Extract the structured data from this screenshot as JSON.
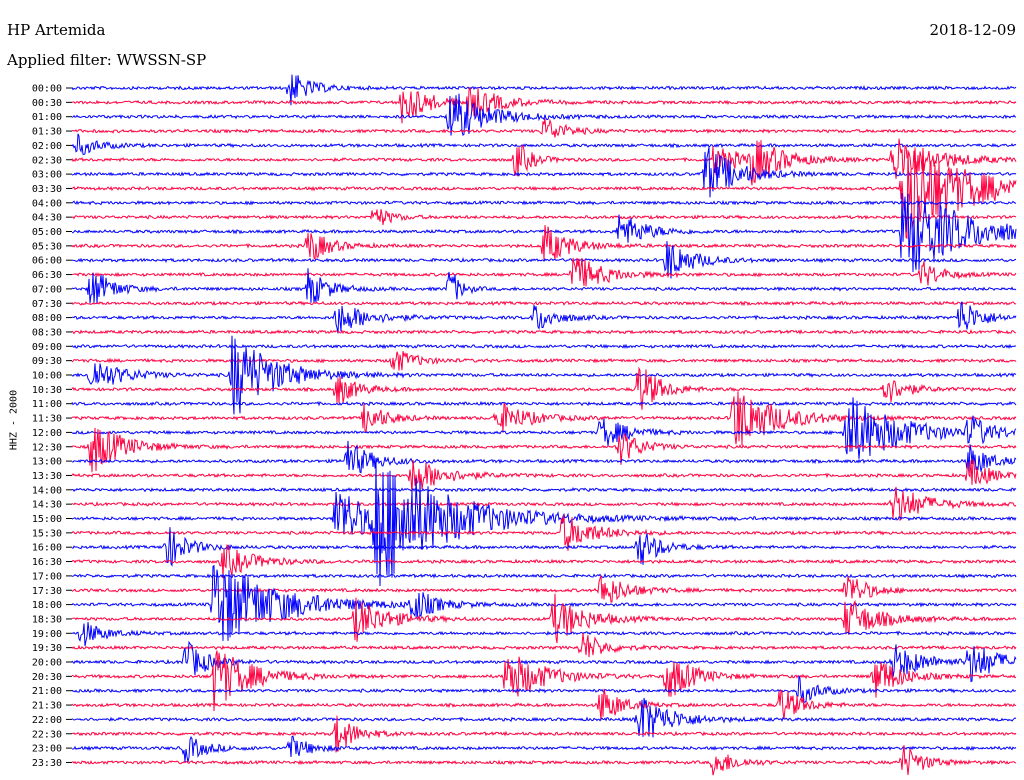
{
  "header": {
    "station": "HP Artemida",
    "date": "2018-12-09",
    "filter_label": "Applied filter: WWSSN-SP"
  },
  "chart_data": {
    "type": "line",
    "subtype": "helicorder",
    "ylabel": "HHZ - 2000",
    "row_labels": [
      "00:00",
      "00:30",
      "01:00",
      "01:30",
      "02:00",
      "02:30",
      "03:00",
      "03:30",
      "04:00",
      "04:30",
      "05:00",
      "05:30",
      "06:00",
      "06:30",
      "07:00",
      "07:30",
      "08:00",
      "08:30",
      "09:00",
      "09:30",
      "10:00",
      "10:30",
      "11:00",
      "11:30",
      "12:00",
      "12:30",
      "13:00",
      "13:30",
      "14:00",
      "14:30",
      "15:00",
      "15:30",
      "16:00",
      "16:30",
      "17:00",
      "17:30",
      "18:00",
      "18:30",
      "19:00",
      "19:30",
      "20:00",
      "20:30",
      "21:00",
      "21:30",
      "22:00",
      "22:30",
      "23:00",
      "23:30"
    ],
    "row_colors": [
      "#0000ff",
      "#ff0040"
    ],
    "grid": false,
    "events": [
      {
        "row": 0,
        "t": 0.23,
        "amp": 1.3,
        "len": 0.02
      },
      {
        "row": 1,
        "t": 0.35,
        "amp": 1.6,
        "len": 0.025
      },
      {
        "row": 1,
        "t": 0.42,
        "amp": 1.2,
        "len": 0.03
      },
      {
        "row": 2,
        "t": 0.4,
        "amp": 2.0,
        "len": 0.035
      },
      {
        "row": 3,
        "t": 0.5,
        "amp": 1.0,
        "len": 0.02
      },
      {
        "row": 4,
        "t": 0.005,
        "amp": 0.8,
        "len": 0.02
      },
      {
        "row": 5,
        "t": 0.47,
        "amp": 1.4,
        "len": 0.015
      },
      {
        "row": 5,
        "t": 0.68,
        "amp": 1.2,
        "len": 0.025
      },
      {
        "row": 5,
        "t": 0.72,
        "amp": 1.6,
        "len": 0.03
      },
      {
        "row": 5,
        "t": 0.87,
        "amp": 1.8,
        "len": 0.04
      },
      {
        "row": 6,
        "t": 0.67,
        "amp": 2.2,
        "len": 0.03
      },
      {
        "row": 7,
        "t": 0.88,
        "amp": 4.0,
        "len": 0.06
      },
      {
        "row": 9,
        "t": 0.32,
        "amp": 0.9,
        "len": 0.015
      },
      {
        "row": 10,
        "t": 0.58,
        "amp": 1.4,
        "len": 0.025
      },
      {
        "row": 10,
        "t": 0.88,
        "amp": 3.5,
        "len": 0.06
      },
      {
        "row": 11,
        "t": 0.25,
        "amp": 1.3,
        "len": 0.02
      },
      {
        "row": 11,
        "t": 0.5,
        "amp": 1.5,
        "len": 0.025
      },
      {
        "row": 12,
        "t": 0.63,
        "amp": 1.6,
        "len": 0.025
      },
      {
        "row": 13,
        "t": 0.53,
        "amp": 1.5,
        "len": 0.03
      },
      {
        "row": 13,
        "t": 0.9,
        "amp": 1.0,
        "len": 0.02
      },
      {
        "row": 14,
        "t": 0.02,
        "amp": 1.6,
        "len": 0.02
      },
      {
        "row": 14,
        "t": 0.25,
        "amp": 1.4,
        "len": 0.02
      },
      {
        "row": 14,
        "t": 0.4,
        "amp": 1.6,
        "len": 0.01
      },
      {
        "row": 16,
        "t": 0.28,
        "amp": 1.2,
        "len": 0.03
      },
      {
        "row": 16,
        "t": 0.49,
        "amp": 1.1,
        "len": 0.02
      },
      {
        "row": 16,
        "t": 0.94,
        "amp": 1.5,
        "len": 0.02
      },
      {
        "row": 19,
        "t": 0.34,
        "amp": 1.0,
        "len": 0.02
      },
      {
        "row": 20,
        "t": 0.02,
        "amp": 1.3,
        "len": 0.03
      },
      {
        "row": 20,
        "t": 0.17,
        "amp": 3.2,
        "len": 0.04
      },
      {
        "row": 21,
        "t": 0.28,
        "amp": 1.2,
        "len": 0.02
      },
      {
        "row": 21,
        "t": 0.6,
        "amp": 2.0,
        "len": 0.02
      },
      {
        "row": 21,
        "t": 0.86,
        "amp": 1.2,
        "len": 0.02
      },
      {
        "row": 23,
        "t": 0.31,
        "amp": 1.2,
        "len": 0.02
      },
      {
        "row": 23,
        "t": 0.45,
        "amp": 1.2,
        "len": 0.03
      },
      {
        "row": 23,
        "t": 0.7,
        "amp": 2.6,
        "len": 0.04
      },
      {
        "row": 24,
        "t": 0.56,
        "amp": 1.2,
        "len": 0.025
      },
      {
        "row": 24,
        "t": 0.82,
        "amp": 2.8,
        "len": 0.05
      },
      {
        "row": 24,
        "t": 0.95,
        "amp": 1.2,
        "len": 0.02
      },
      {
        "row": 25,
        "t": 0.02,
        "amp": 2.0,
        "len": 0.03
      },
      {
        "row": 25,
        "t": 0.58,
        "amp": 1.3,
        "len": 0.02
      },
      {
        "row": 26,
        "t": 0.29,
        "amp": 1.5,
        "len": 0.025
      },
      {
        "row": 26,
        "t": 0.95,
        "amp": 1.3,
        "len": 0.02
      },
      {
        "row": 27,
        "t": 0.36,
        "amp": 1.4,
        "len": 0.03
      },
      {
        "row": 27,
        "t": 0.95,
        "amp": 1.2,
        "len": 0.02
      },
      {
        "row": 29,
        "t": 0.87,
        "amp": 1.5,
        "len": 0.03
      },
      {
        "row": 30,
        "t": 0.28,
        "amp": 2.6,
        "len": 0.03
      },
      {
        "row": 30,
        "t": 0.32,
        "amp": 5.0,
        "len": 0.07
      },
      {
        "row": 31,
        "t": 0.52,
        "amp": 1.4,
        "len": 0.03
      },
      {
        "row": 32,
        "t": 0.1,
        "amp": 1.6,
        "len": 0.02
      },
      {
        "row": 32,
        "t": 0.6,
        "amp": 1.5,
        "len": 0.02
      },
      {
        "row": 33,
        "t": 0.16,
        "amp": 1.2,
        "len": 0.03
      },
      {
        "row": 35,
        "t": 0.56,
        "amp": 1.3,
        "len": 0.025
      },
      {
        "row": 35,
        "t": 0.82,
        "amp": 1.4,
        "len": 0.02
      },
      {
        "row": 36,
        "t": 0.15,
        "amp": 3.5,
        "len": 0.06
      },
      {
        "row": 36,
        "t": 0.36,
        "amp": 1.3,
        "len": 0.02
      },
      {
        "row": 37,
        "t": 0.3,
        "amp": 1.6,
        "len": 0.03
      },
      {
        "row": 37,
        "t": 0.51,
        "amp": 1.8,
        "len": 0.03
      },
      {
        "row": 37,
        "t": 0.82,
        "amp": 1.6,
        "len": 0.03
      },
      {
        "row": 38,
        "t": 0.01,
        "amp": 1.0,
        "len": 0.02
      },
      {
        "row": 39,
        "t": 0.54,
        "amp": 1.2,
        "len": 0.02
      },
      {
        "row": 40,
        "t": 0.12,
        "amp": 1.6,
        "len": 0.02
      },
      {
        "row": 40,
        "t": 0.87,
        "amp": 1.3,
        "len": 0.03
      },
      {
        "row": 40,
        "t": 0.95,
        "amp": 1.5,
        "len": 0.03
      },
      {
        "row": 41,
        "t": 0.15,
        "amp": 2.4,
        "len": 0.035
      },
      {
        "row": 41,
        "t": 0.46,
        "amp": 2.0,
        "len": 0.035
      },
      {
        "row": 41,
        "t": 0.63,
        "amp": 1.8,
        "len": 0.025
      },
      {
        "row": 41,
        "t": 0.85,
        "amp": 1.6,
        "len": 0.025
      },
      {
        "row": 42,
        "t": 0.77,
        "amp": 1.0,
        "len": 0.02
      },
      {
        "row": 43,
        "t": 0.56,
        "amp": 1.4,
        "len": 0.02
      },
      {
        "row": 43,
        "t": 0.75,
        "amp": 1.4,
        "len": 0.02
      },
      {
        "row": 44,
        "t": 0.6,
        "amp": 2.0,
        "len": 0.03
      },
      {
        "row": 45,
        "t": 0.28,
        "amp": 1.4,
        "len": 0.02
      },
      {
        "row": 46,
        "t": 0.12,
        "amp": 1.0,
        "len": 0.02
      },
      {
        "row": 46,
        "t": 0.23,
        "amp": 0.9,
        "len": 0.02
      },
      {
        "row": 47,
        "t": 0.68,
        "amp": 1.1,
        "len": 0.02
      },
      {
        "row": 47,
        "t": 0.88,
        "amp": 1.3,
        "len": 0.02
      }
    ]
  }
}
